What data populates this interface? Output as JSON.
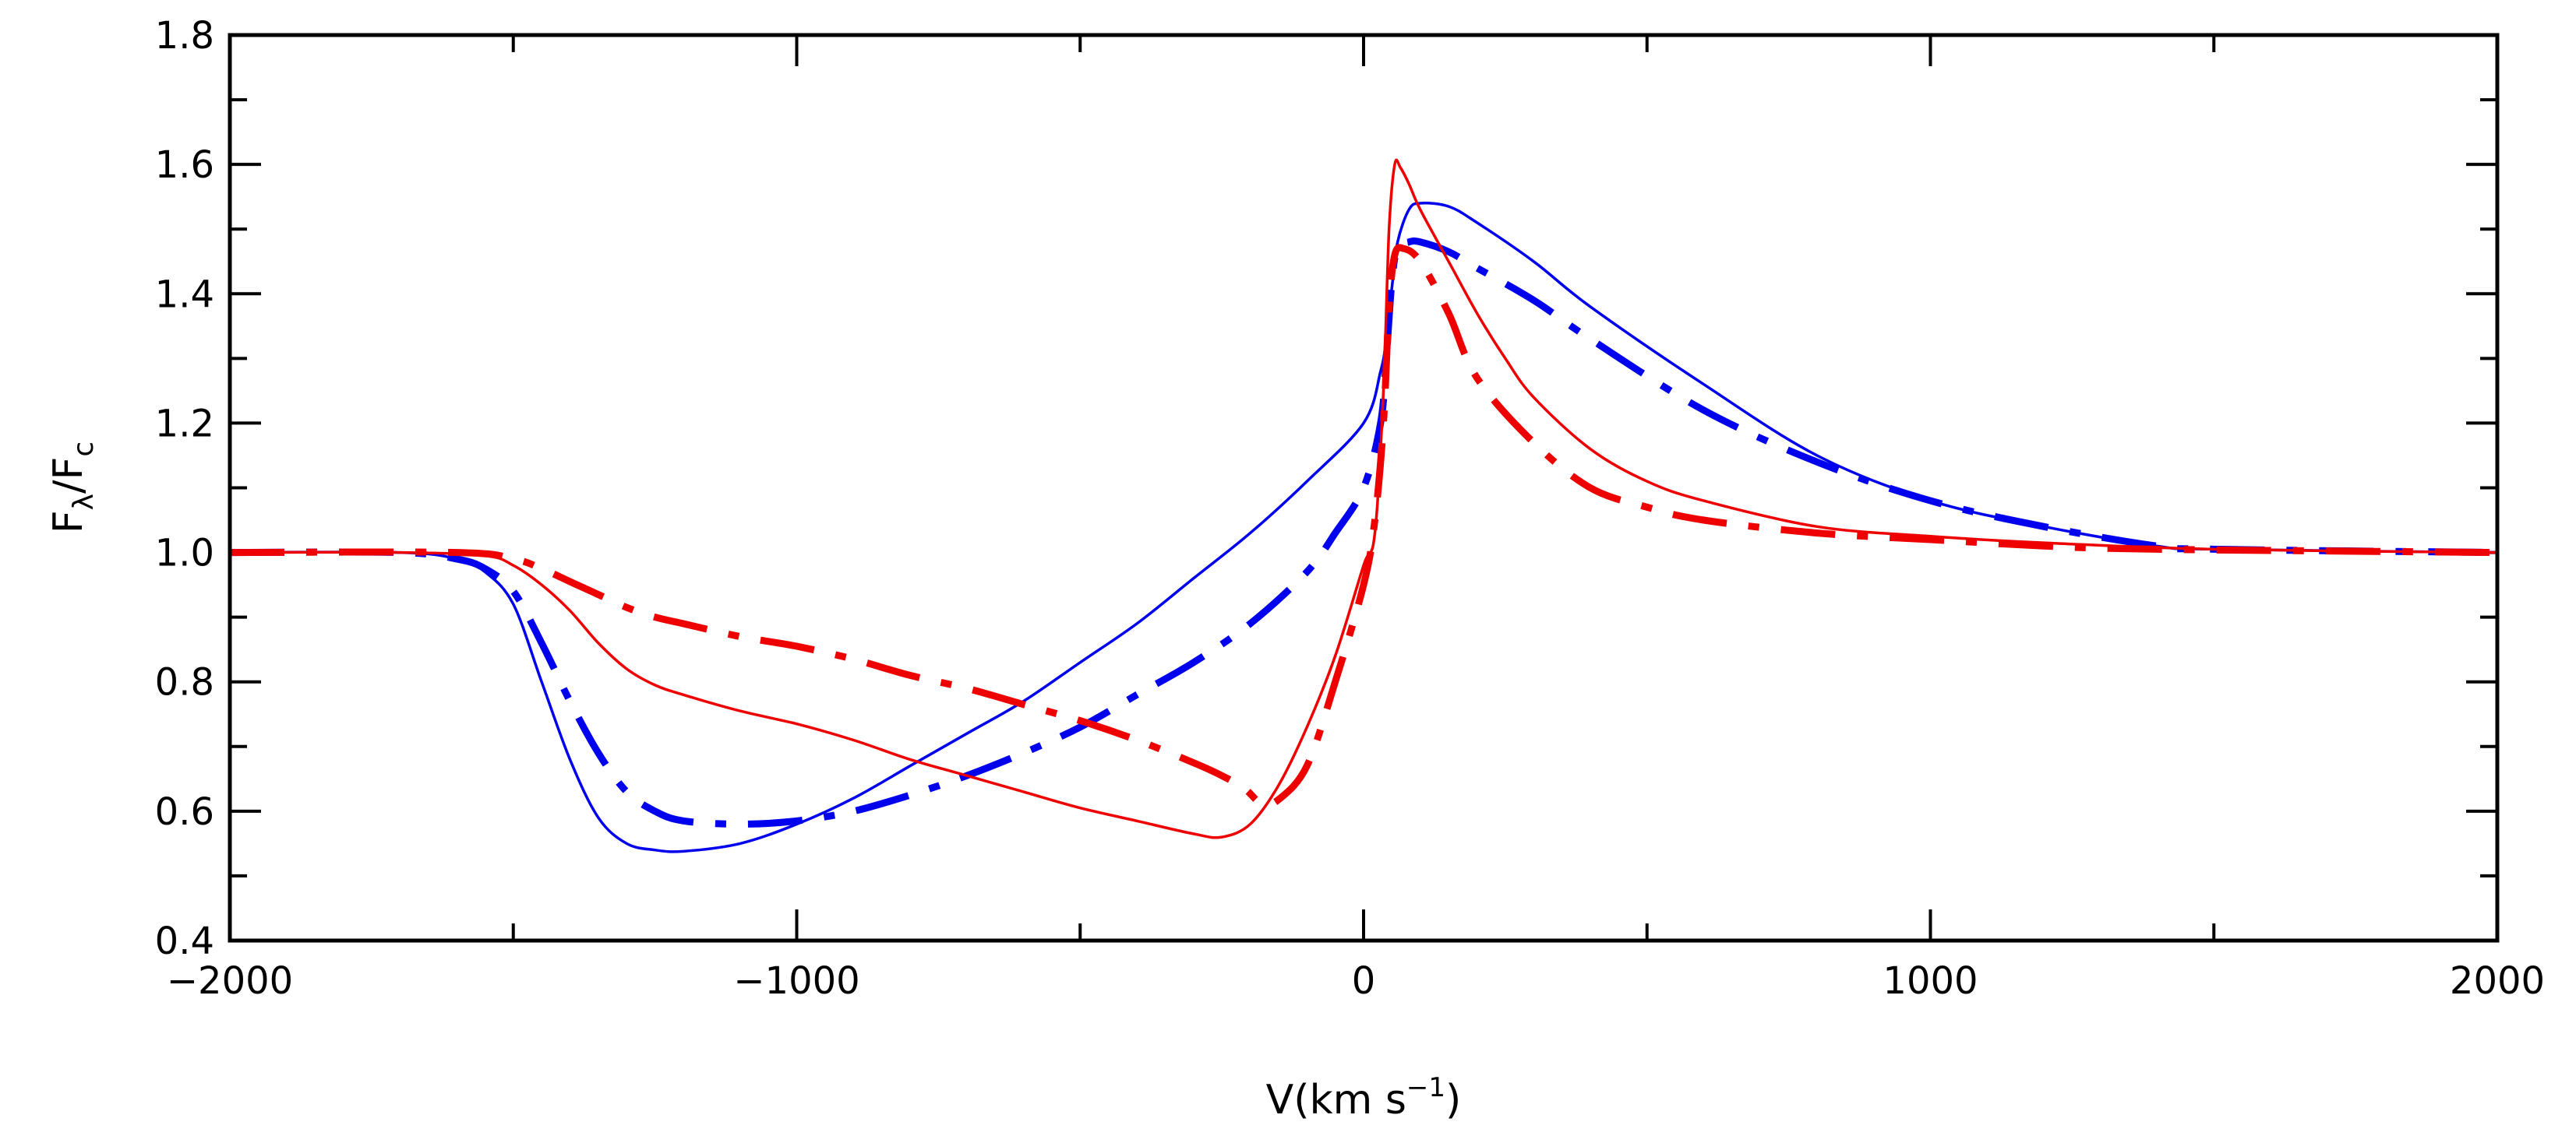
{
  "chart_data": {
    "type": "line",
    "title": "",
    "xlabel": {
      "main": "V(km s",
      "sup": "−1",
      "close": ")"
    },
    "ylabel": {
      "main": "F",
      "sub1": "λ",
      "slash": "/F",
      "sub2": "c"
    },
    "xlim": [
      -2000,
      2000
    ],
    "ylim": [
      0.4,
      1.8
    ],
    "x_ticks": [
      -2000,
      -1000,
      0,
      1000,
      2000
    ],
    "x_tick_labels": [
      "−2000",
      "−1000",
      "0",
      "1000",
      "2000"
    ],
    "x_minor_step": 500,
    "y_ticks": [
      0.4,
      0.6,
      0.8,
      1.0,
      1.2,
      1.4,
      1.6,
      1.8
    ],
    "y_tick_labels": [
      "0.4",
      "0.6",
      "0.8",
      "1.0",
      "1.2",
      "1.4",
      "1.6",
      "1.8"
    ],
    "y_minor_step": 0.1,
    "grid": false,
    "legend": "none",
    "series": [
      {
        "name": "blue-solid",
        "color": "#0000ee",
        "style": "solid",
        "x": [
          -2000,
          -1700,
          -1600,
          -1550,
          -1500,
          -1450,
          -1400,
          -1350,
          -1300,
          -1250,
          -1200,
          -1100,
          -1000,
          -900,
          -800,
          -700,
          -600,
          -500,
          -400,
          -300,
          -200,
          -100,
          0,
          30,
          40,
          50,
          60,
          80,
          100,
          150,
          200,
          300,
          400,
          600,
          800,
          1000,
          1200,
          1400,
          1500,
          2000
        ],
        "y": [
          1.0,
          1.0,
          0.99,
          0.97,
          0.92,
          0.8,
          0.68,
          0.59,
          0.55,
          0.54,
          0.538,
          0.55,
          0.58,
          0.62,
          0.67,
          0.72,
          0.77,
          0.83,
          0.89,
          0.96,
          1.03,
          1.11,
          1.2,
          1.28,
          1.33,
          1.41,
          1.48,
          1.53,
          1.54,
          1.535,
          1.51,
          1.45,
          1.38,
          1.26,
          1.15,
          1.08,
          1.04,
          1.01,
          1.005,
          1.0
        ]
      },
      {
        "name": "blue-dashdot",
        "color": "#0000ee",
        "style": "dashdot",
        "x": [
          -2000,
          -1700,
          -1600,
          -1550,
          -1500,
          -1450,
          -1400,
          -1350,
          -1300,
          -1250,
          -1200,
          -1100,
          -1000,
          -900,
          -800,
          -700,
          -600,
          -500,
          -400,
          -300,
          -200,
          -100,
          -50,
          0,
          30,
          40,
          50,
          60,
          80,
          100,
          150,
          200,
          300,
          400,
          600,
          800,
          1000,
          1200,
          1400,
          1500,
          2000
        ],
        "y": [
          1.0,
          1.0,
          0.99,
          0.975,
          0.94,
          0.86,
          0.77,
          0.69,
          0.63,
          0.6,
          0.585,
          0.58,
          0.585,
          0.6,
          0.625,
          0.655,
          0.69,
          0.73,
          0.78,
          0.83,
          0.89,
          0.97,
          1.03,
          1.1,
          1.2,
          1.3,
          1.42,
          1.47,
          1.48,
          1.48,
          1.465,
          1.44,
          1.39,
          1.33,
          1.22,
          1.14,
          1.08,
          1.04,
          1.01,
          1.005,
          1.0
        ]
      },
      {
        "name": "red-solid",
        "color": "#ee0000",
        "style": "solid",
        "x": [
          -2000,
          -1700,
          -1550,
          -1500,
          -1450,
          -1400,
          -1350,
          -1300,
          -1250,
          -1200,
          -1100,
          -1000,
          -900,
          -800,
          -700,
          -600,
          -500,
          -400,
          -300,
          -250,
          -200,
          -150,
          -100,
          -50,
          0,
          20,
          35,
          45,
          55,
          65,
          80,
          100,
          150,
          200,
          250,
          300,
          400,
          500,
          600,
          800,
          1000,
          1200,
          1500,
          2000
        ],
        "y": [
          1.0,
          1.0,
          0.995,
          0.98,
          0.95,
          0.91,
          0.86,
          0.82,
          0.795,
          0.78,
          0.755,
          0.735,
          0.71,
          0.68,
          0.655,
          0.63,
          0.605,
          0.585,
          0.565,
          0.56,
          0.58,
          0.64,
          0.73,
          0.84,
          0.98,
          1.03,
          1.25,
          1.5,
          1.6,
          1.595,
          1.57,
          1.53,
          1.45,
          1.37,
          1.3,
          1.24,
          1.16,
          1.11,
          1.08,
          1.04,
          1.025,
          1.015,
          1.005,
          1.0
        ]
      },
      {
        "name": "red-dashdot",
        "color": "#ee0000",
        "style": "dashdot",
        "x": [
          -2000,
          -1600,
          -1500,
          -1450,
          -1400,
          -1350,
          -1300,
          -1250,
          -1200,
          -1100,
          -1000,
          -900,
          -800,
          -700,
          -600,
          -500,
          -400,
          -300,
          -250,
          -210,
          -180,
          -150,
          -100,
          -50,
          0,
          20,
          35,
          45,
          55,
          70,
          100,
          150,
          200,
          300,
          400,
          500,
          600,
          800,
          1000,
          1200,
          1400,
          2000
        ],
        "y": [
          1.0,
          1.0,
          0.99,
          0.975,
          0.955,
          0.935,
          0.915,
          0.9,
          0.89,
          0.87,
          0.855,
          0.835,
          0.81,
          0.79,
          0.765,
          0.74,
          0.71,
          0.675,
          0.655,
          0.635,
          0.612,
          0.618,
          0.67,
          0.8,
          0.95,
          1.05,
          1.2,
          1.38,
          1.46,
          1.47,
          1.45,
          1.37,
          1.27,
          1.17,
          1.1,
          1.07,
          1.05,
          1.03,
          1.02,
          1.01,
          1.005,
          1.0
        ]
      }
    ]
  }
}
